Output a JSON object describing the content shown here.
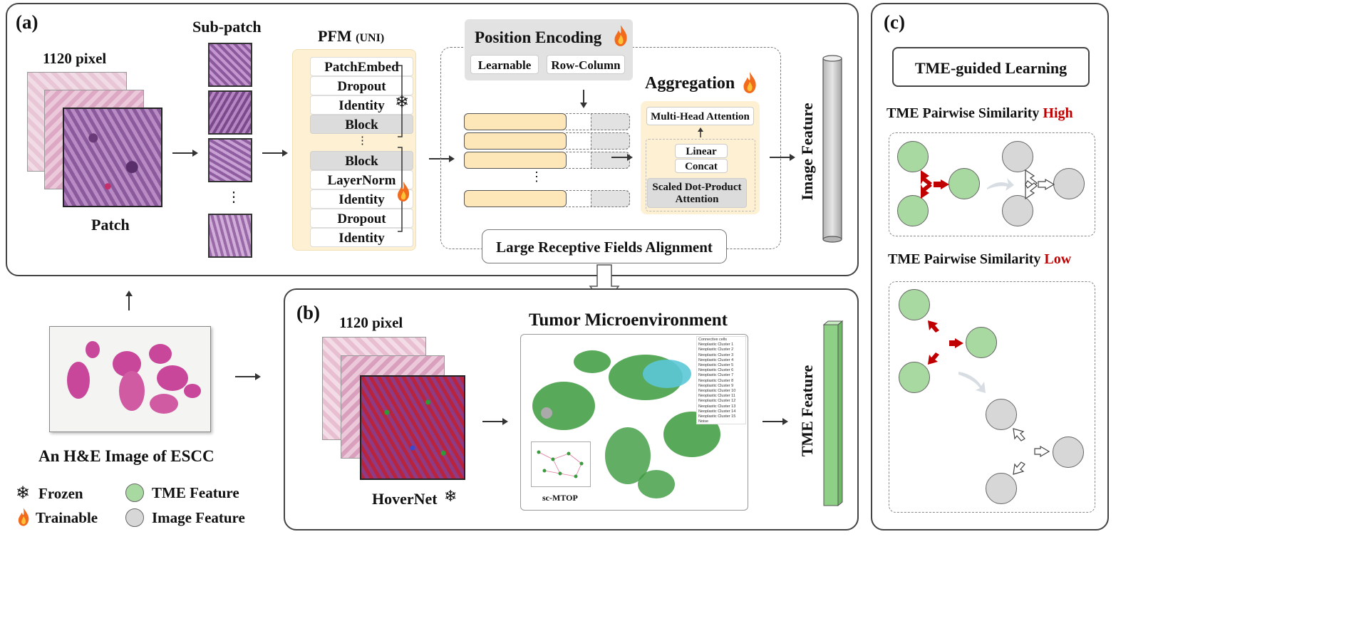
{
  "panel_a": {
    "label": "(a)",
    "patch_px": "1120 pixel",
    "patch_caption": "Patch",
    "subpatch_title": "Sub-patch",
    "subpatch_dots": "⋮",
    "pfm_title": "PFM",
    "pfm_sub": "(UNI)",
    "pfm_layers": [
      "PatchEmbed",
      "Dropout",
      "Identity",
      "Block",
      "⋮",
      "Block",
      "LayerNorm",
      "Identity",
      "Dropout",
      "Identity"
    ],
    "pos_title": "Position Encoding",
    "pos_options": [
      "Learnable",
      "Row-Column"
    ],
    "token_dots": "⋮",
    "agg_title": "Aggregation",
    "agg_mha": "Multi-Head Attention",
    "agg_linear": "Linear",
    "agg_concat": "Concat",
    "agg_sdpa": "Scaled Dot-Product Attention",
    "image_feature": "Image Feature",
    "alignment": "Large Receptive Fields Alignment"
  },
  "wsi_caption": "An H&E Image of ESCC",
  "legend": {
    "frozen": "Frozen",
    "trainable": "Trainable",
    "tme": "TME Feature",
    "image": "Image Feature"
  },
  "panel_b": {
    "label": "(b)",
    "patch_px": "1120 pixel",
    "hovernet": "HoverNet",
    "tme_title": "Tumor Microenvironment",
    "graph_label": "sc-MTOP",
    "tme_feature": "TME Feature",
    "legend_items": [
      "Connective cells",
      "Neoplastic Cluster 1",
      "Neoplastic Cluster 2",
      "Neoplastic Cluster 3",
      "Neoplastic Cluster 4",
      "Neoplastic Cluster 5",
      "Neoplastic Cluster 6",
      "Neoplastic Cluster 7",
      "Neoplastic Cluster 8",
      "Neoplastic Cluster 9",
      "Neoplastic Cluster 10",
      "Neoplastic Cluster 11",
      "Neoplastic Cluster 12",
      "Neoplastic Cluster 13",
      "Neoplastic Cluster 14",
      "Neoplastic Cluster 15",
      "Noise"
    ]
  },
  "panel_c": {
    "label": "(c)",
    "title": "TME-guided Learning",
    "high_prefix": "TME Pairwise Similarity ",
    "high_word": "High",
    "low_prefix": "TME Pairwise Similarity ",
    "low_word": "Low"
  },
  "colors": {
    "tme_green": "#a8d9a0",
    "image_gray": "#d7d7d7",
    "accent_red": "#c00000",
    "token_fill": "#fde7b9",
    "pfm_bg": "#fdf0d3"
  }
}
